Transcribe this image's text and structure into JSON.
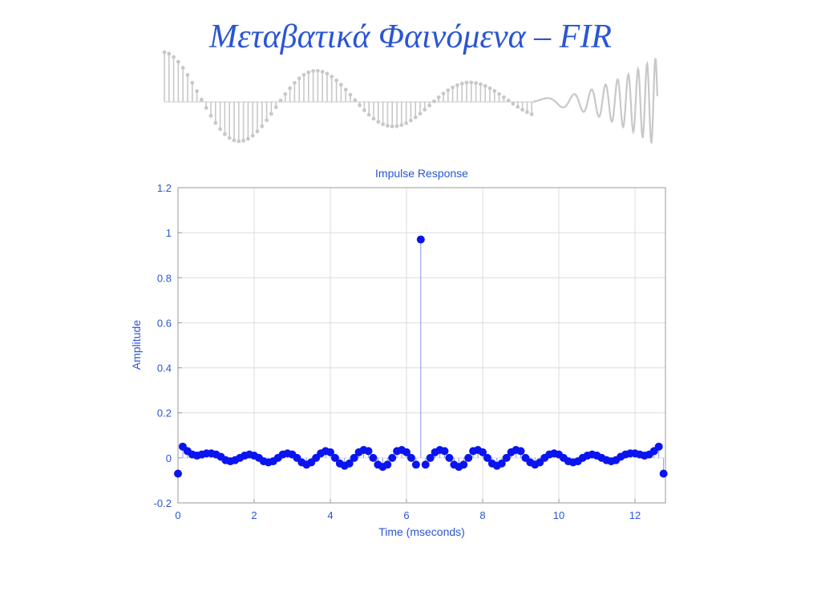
{
  "slide": {
    "title": "Μεταβατικά Φαινόμενα – FIR"
  },
  "banner": {
    "icon": "decorative-signal-waveform-icon",
    "color": "#c8c8c8"
  },
  "chart_data": {
    "type": "stem",
    "title": "Impulse Response",
    "xlabel": "Time (mseconds)",
    "ylabel": "Amplitude",
    "xlim": [
      0,
      12.8
    ],
    "ylim": [
      -0.2,
      1.2
    ],
    "xticks": [
      "0",
      "2",
      "4",
      "6",
      "8",
      "10",
      "12"
    ],
    "yticks": [
      "-0.2",
      "0",
      "0.2",
      "0.4",
      "0.6",
      "0.8",
      "1",
      "1.2"
    ],
    "grid": true,
    "colors": {
      "marker": "#0a14f0",
      "text": "#2a55d4",
      "grid": "#dcdcdc",
      "axis": "#9a9a9a"
    },
    "series": [
      {
        "x_start": 0,
        "x_step": 0.125,
        "values": [
          -0.07,
          0.05,
          0.03,
          0.015,
          0.01,
          0.015,
          0.02,
          0.02,
          0.015,
          0.005,
          -0.01,
          -0.015,
          -0.01,
          0.0,
          0.01,
          0.015,
          0.01,
          0.0,
          -0.015,
          -0.02,
          -0.015,
          0.0,
          0.015,
          0.02,
          0.015,
          0.0,
          -0.02,
          -0.03,
          -0.02,
          0.0,
          0.02,
          0.03,
          0.025,
          0.0,
          -0.025,
          -0.035,
          -0.025,
          0.0,
          0.025,
          0.035,
          0.03,
          0.0,
          -0.03,
          -0.04,
          -0.03,
          0.0,
          0.03,
          0.035,
          0.025,
          0.0,
          -0.03,
          0.97,
          -0.03,
          0.0,
          0.025,
          0.035,
          0.03,
          0.0,
          -0.03,
          -0.04,
          -0.03,
          0.0,
          0.03,
          0.035,
          0.025,
          0.0,
          -0.025,
          -0.035,
          -0.025,
          0.0,
          0.025,
          0.035,
          0.03,
          0.0,
          -0.02,
          -0.03,
          -0.02,
          0.0,
          0.015,
          0.02,
          0.015,
          0.0,
          -0.015,
          -0.02,
          -0.015,
          0.0,
          0.01,
          0.015,
          0.01,
          0.0,
          -0.01,
          -0.015,
          -0.01,
          0.005,
          0.015,
          0.02,
          0.02,
          0.015,
          0.01,
          0.015,
          0.03,
          0.05,
          -0.07
        ]
      }
    ]
  }
}
